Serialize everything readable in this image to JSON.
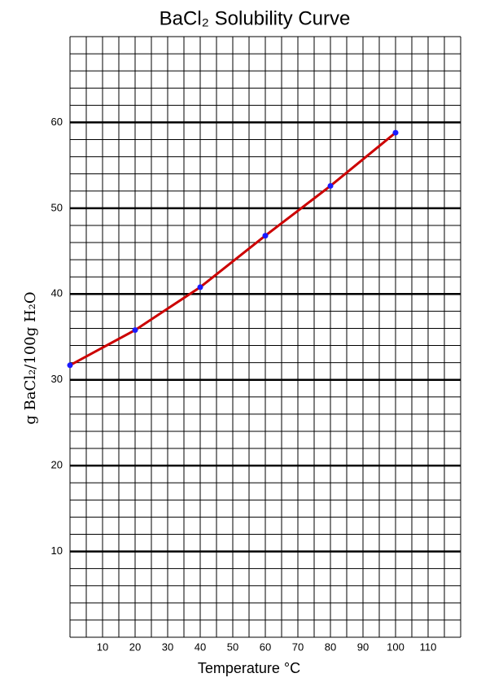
{
  "chart_data": {
    "type": "line",
    "title": "BaCl₂ Solubility Curve",
    "x_label": "Temperature °C",
    "y_label": "g BaCl₂/100g H₂O",
    "series": [
      {
        "name": "BaCl₂",
        "color": "#cc0000",
        "marker_color": "#1a1aff",
        "x": [
          0,
          20,
          40,
          60,
          80,
          100
        ],
        "values": [
          31.7,
          35.8,
          40.8,
          46.8,
          52.6,
          58.8
        ]
      }
    ],
    "xlim": [
      0,
      120
    ],
    "xticks": [
      10,
      20,
      30,
      40,
      50,
      60,
      70,
      80,
      90,
      100,
      110
    ],
    "ylim": [
      0,
      70
    ],
    "yticks": [
      10,
      20,
      30,
      40,
      50,
      60
    ],
    "grid": true
  }
}
